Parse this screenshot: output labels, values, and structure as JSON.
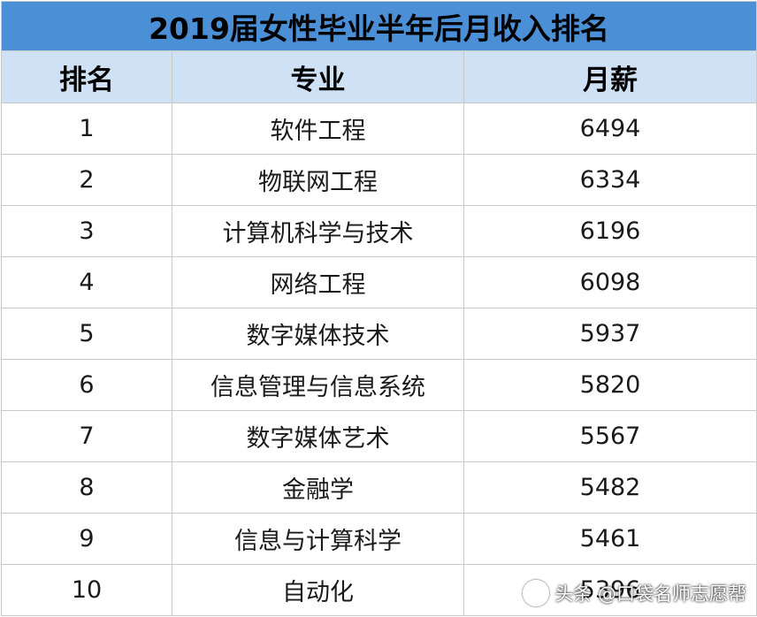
{
  "table": {
    "title": "2019届女性毕业半年后月收入排名",
    "headers": {
      "rank": "排名",
      "major": "专业",
      "salary": "月薪"
    },
    "rows": [
      {
        "rank": "1",
        "major": "软件工程",
        "salary": "6494"
      },
      {
        "rank": "2",
        "major": "物联网工程",
        "salary": "6334"
      },
      {
        "rank": "3",
        "major": "计算机科学与技术",
        "salary": "6196"
      },
      {
        "rank": "4",
        "major": "网络工程",
        "salary": "6098"
      },
      {
        "rank": "5",
        "major": "数字媒体技术",
        "salary": "5937"
      },
      {
        "rank": "6",
        "major": "信息管理与信息系统",
        "salary": "5820"
      },
      {
        "rank": "7",
        "major": "数字媒体艺术",
        "salary": "5567"
      },
      {
        "rank": "8",
        "major": "金融学",
        "salary": "5482"
      },
      {
        "rank": "9",
        "major": "信息与计算科学",
        "salary": "5461"
      },
      {
        "rank": "10",
        "major": "自动化",
        "salary": "5396"
      }
    ]
  },
  "watermark": {
    "text": "头条 @口袋名师志愿帮",
    "icon": "toutiao-logo-icon"
  },
  "colors": {
    "title_bg": "#4b8fd6",
    "header_bg": "#cfe2f5",
    "border": "#c9c9c9"
  }
}
